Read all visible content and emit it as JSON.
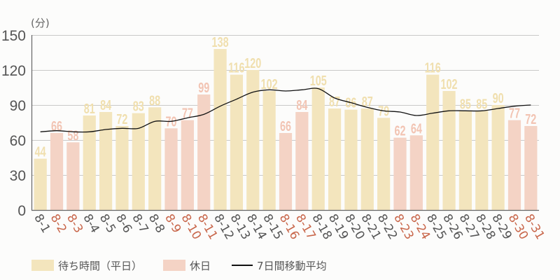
{
  "chart_data": {
    "type": "bar",
    "title": "",
    "ylabel": "(分)",
    "xlabel": "",
    "ylim": [
      0,
      150
    ],
    "yticks": [
      0,
      30,
      60,
      90,
      120,
      150
    ],
    "grid": true,
    "legend_position": "bottom",
    "categories": [
      "8-1",
      "8-2",
      "8-3",
      "8-4",
      "8-5",
      "8-6",
      "8-7",
      "8-8",
      "8-9",
      "8-10",
      "8-11",
      "8-12",
      "8-13",
      "8-14",
      "8-15",
      "8-16",
      "8-17",
      "8-18",
      "8-19",
      "8-20",
      "8-21",
      "8-22",
      "8-23",
      "8-24",
      "8-25",
      "8-26",
      "8-27",
      "8-28",
      "8-29",
      "8-30",
      "8-31"
    ],
    "values": [
      44,
      66,
      58,
      81,
      84,
      72,
      83,
      88,
      70,
      77,
      99,
      138,
      116,
      120,
      102,
      66,
      84,
      105,
      87,
      86,
      87,
      79,
      62,
      64,
      116,
      102,
      85,
      85,
      90,
      77,
      72
    ],
    "holiday": [
      false,
      true,
      true,
      false,
      false,
      false,
      false,
      false,
      true,
      true,
      true,
      false,
      false,
      false,
      false,
      true,
      true,
      false,
      false,
      false,
      false,
      false,
      true,
      true,
      false,
      false,
      false,
      false,
      false,
      true,
      true
    ],
    "series": [
      {
        "name": "待ち時間（平日）",
        "type": "bar",
        "color": "#f3e5bd"
      },
      {
        "name": "休日",
        "type": "bar",
        "color": "#f4d3c5"
      },
      {
        "name": "7日間移動平均",
        "type": "line",
        "color": "#111111",
        "values": [
          67,
          68,
          67,
          67,
          69,
          70,
          70,
          76,
          76,
          79,
          82,
          89,
          95,
          101,
          103,
          102,
          103,
          104,
          96,
          92,
          88,
          85,
          84,
          81,
          83,
          85,
          85,
          85,
          87,
          89,
          90
        ]
      }
    ]
  },
  "colors": {
    "weekday_bar": "#f3e5bd",
    "holiday_bar": "#f4d3c5",
    "weekday_label": "#f0dfae",
    "holiday_label": "#f2c4b3",
    "weekday_tick": "#555555",
    "holiday_tick": "#c8664a",
    "line": "#111111",
    "grid": "#c8c8c8",
    "axis": "#666666"
  },
  "legend": {
    "weekday": "待ち時間（平日）",
    "holiday": "休日",
    "average": "7日間移動平均"
  }
}
